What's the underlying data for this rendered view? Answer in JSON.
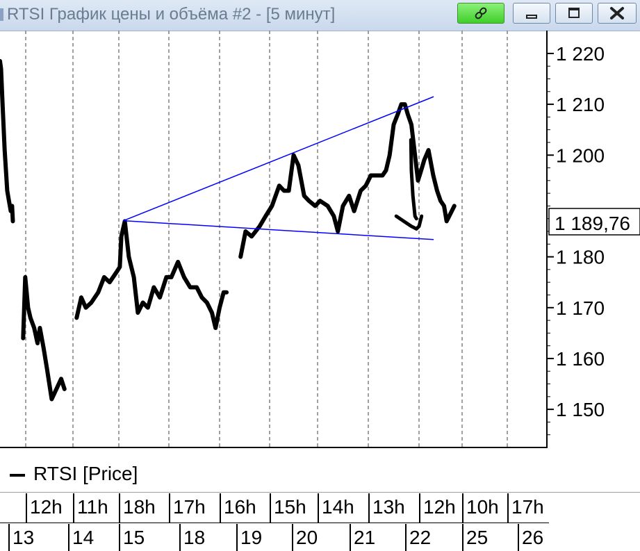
{
  "window": {
    "title": "RTSI График цены и объёма #2 - [5 минут]",
    "buttons": {
      "link": "link",
      "minimize": "minimize",
      "maximize": "maximize",
      "close": "close"
    }
  },
  "legend": {
    "label": "RTSI [Price]"
  },
  "colors": {
    "price": "#000000",
    "trendline": "#0000ff",
    "grid": "#808080"
  },
  "chart_data": {
    "type": "line",
    "y_ticks": [
      "1 220",
      "1 210",
      "1 200",
      "1 180",
      "1 170",
      "1 160",
      "1 150"
    ],
    "y_tick_values": [
      1220,
      1210,
      1200,
      1180,
      1170,
      1160,
      1150
    ],
    "last_price_label": "1 189,76",
    "last_price": 1189.76,
    "ylim": [
      1142.5,
      1224.5
    ],
    "time_row_labels": [
      "12h",
      "11h",
      "18h",
      "17h",
      "16h",
      "15h",
      "14h",
      "13h",
      "12h",
      "10h",
      "17h"
    ],
    "date_row_labels": [
      "13",
      "14",
      "15",
      "18",
      "19",
      "20",
      "21",
      "22",
      "25",
      "26"
    ],
    "grid": true,
    "series": [
      {
        "name": "RTSI [Price]",
        "points": [
          [
            0,
            1218.5
          ],
          [
            0.04,
            1217
          ],
          [
            0.1,
            1210
          ],
          [
            0.18,
            1201
          ],
          [
            0.28,
            1193
          ],
          [
            0.35,
            1191
          ],
          [
            0.42,
            1189
          ],
          [
            0.47,
            1190
          ],
          [
            0.5,
            1187
          ],
          [
            0.9,
            1164
          ],
          [
            0.98,
            1176
          ],
          [
            1.05,
            1170
          ],
          [
            1.1,
            1168
          ],
          [
            1.18,
            1166
          ],
          [
            1.25,
            1163
          ],
          [
            1.3,
            1166
          ],
          [
            1.38,
            1162
          ],
          [
            1.45,
            1158
          ],
          [
            1.55,
            1152
          ],
          [
            1.65,
            1154
          ],
          [
            1.75,
            1156
          ],
          [
            1.82,
            1154
          ],
          [
            2.08,
            1168
          ],
          [
            2.18,
            1172
          ],
          [
            2.28,
            1170
          ],
          [
            2.4,
            1171
          ],
          [
            2.55,
            1173
          ],
          [
            2.68,
            1176
          ],
          [
            2.8,
            1175
          ],
          [
            2.95,
            1177
          ],
          [
            3.02,
            1178
          ],
          [
            3.05,
            1184
          ],
          [
            3.12,
            1187
          ],
          [
            3.2,
            1180
          ],
          [
            3.3,
            1176
          ],
          [
            3.38,
            1169
          ],
          [
            3.48,
            1171
          ],
          [
            3.58,
            1170
          ],
          [
            3.7,
            1174
          ],
          [
            3.82,
            1172
          ],
          [
            3.95,
            1176
          ],
          [
            4.05,
            1176
          ],
          [
            4.18,
            1179
          ],
          [
            4.3,
            1176
          ],
          [
            4.42,
            1174
          ],
          [
            4.55,
            1174
          ],
          [
            4.65,
            1172
          ],
          [
            4.75,
            1171
          ],
          [
            4.85,
            1169
          ],
          [
            4.92,
            1166
          ],
          [
            5.0,
            1170
          ],
          [
            5.08,
            1173
          ],
          [
            5.14,
            1173
          ],
          [
            5.42,
            1180
          ],
          [
            5.52,
            1185
          ],
          [
            5.64,
            1184
          ],
          [
            5.8,
            1186
          ],
          [
            5.92,
            1188
          ],
          [
            6.05,
            1190
          ],
          [
            6.2,
            1194
          ],
          [
            6.3,
            1193
          ],
          [
            6.4,
            1193
          ],
          [
            6.5,
            1200
          ],
          [
            6.6,
            1198
          ],
          [
            6.72,
            1192
          ],
          [
            6.82,
            1191
          ],
          [
            6.95,
            1190
          ],
          [
            7.05,
            1191
          ],
          [
            7.2,
            1190
          ],
          [
            7.32,
            1188
          ],
          [
            7.4,
            1185
          ],
          [
            7.5,
            1190
          ],
          [
            7.62,
            1192
          ],
          [
            7.72,
            1189
          ],
          [
            7.85,
            1193
          ],
          [
            7.95,
            1194
          ],
          [
            8.05,
            1196
          ],
          [
            8.15,
            1196
          ],
          [
            8.28,
            1196
          ],
          [
            8.35,
            1197
          ],
          [
            8.42,
            1200
          ],
          [
            8.5,
            1206
          ],
          [
            8.58,
            1208
          ],
          [
            8.65,
            1210
          ],
          [
            8.72,
            1210
          ],
          [
            8.78,
            1208
          ],
          [
            8.85,
            1206
          ],
          [
            8.92,
            1200
          ],
          [
            8.98,
            1195
          ],
          [
            9.05,
            1197
          ],
          [
            9.12,
            1199
          ],
          [
            9.22,
            1201
          ],
          [
            9.33,
            1196
          ],
          [
            9.42,
            1193
          ],
          [
            9.5,
            1191
          ],
          [
            9.58,
            1190
          ],
          [
            9.64,
            1187
          ],
          [
            9.7,
            1188
          ],
          [
            9.76,
            1189
          ],
          [
            9.82,
            1190
          ]
        ]
      }
    ],
    "trendlines": [
      {
        "from": [
          3.09,
          1187.1
        ],
        "to": [
          9.34,
          1211.5
        ]
      },
      {
        "from": [
          3.09,
          1187.1
        ],
        "to": [
          9.34,
          1183.4
        ]
      }
    ],
    "annotation_stroke": [
      [
        8.84,
        1203
      ],
      [
        8.85,
        1197
      ],
      [
        8.88,
        1192
      ],
      [
        8.92,
        1188
      ],
      [
        8.95,
        1187.5
      ]
    ],
    "annotation_hook": [
      [
        8.55,
        1188
      ],
      [
        8.7,
        1187
      ],
      [
        8.85,
        1186
      ],
      [
        8.95,
        1185.5
      ],
      [
        9.0,
        1186
      ],
      [
        9.06,
        1188
      ]
    ]
  }
}
